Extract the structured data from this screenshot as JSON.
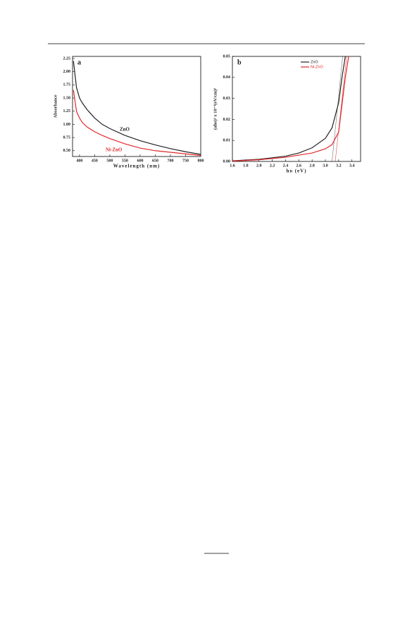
{
  "chart_data": [
    {
      "type": "line",
      "annotation": "a",
      "xlabel": "Wavelength (nm)",
      "ylabel": "Absorbance",
      "xlim": [
        377,
        800
      ],
      "xticks": [
        400,
        450,
        500,
        550,
        600,
        650,
        700,
        750,
        800
      ],
      "ylim": [
        0.39,
        2.29
      ],
      "yticks": [
        {
          "value": 0.5,
          "label": "0.50"
        },
        0.75,
        {
          "value": 1,
          "label": "1.00"
        },
        1.25,
        {
          "value": 1.5,
          "label": "1.50"
        },
        1.75,
        {
          "value": 2,
          "label": "2.00"
        },
        2.25
      ],
      "series": [
        {
          "name": "ZnO",
          "color": "#222222",
          "x": [
            380,
            390,
            400,
            410,
            425,
            450,
            475,
            500,
            550,
            600,
            650,
            700,
            750,
            800
          ],
          "values": [
            2.2,
            1.7,
            1.5,
            1.4,
            1.28,
            1.12,
            1.0,
            0.92,
            0.79,
            0.69,
            0.61,
            0.54,
            0.48,
            0.43
          ]
        },
        {
          "name": "Ni-ZnO",
          "color": "#e0282a",
          "x": [
            380,
            390,
            400,
            410,
            425,
            450,
            475,
            500,
            550,
            600,
            650,
            700,
            750,
            800
          ],
          "values": [
            1.65,
            1.25,
            1.12,
            1.03,
            0.95,
            0.86,
            0.79,
            0.73,
            0.63,
            0.55,
            0.5,
            0.47,
            0.44,
            0.41
          ]
        }
      ],
      "legend": "inline"
    },
    {
      "type": "line",
      "annotation": "b",
      "xlabel": "hυ (eV)",
      "ylabel": "(αhυ)² x 10⁻⁴(eV/cm)²",
      "xlim": [
        1.6,
        3.53
      ],
      "xticks": [
        1.6,
        1.8,
        {
          "value": 2,
          "label": "2.0"
        },
        2.2,
        2.4,
        2.6,
        2.8,
        {
          "value": 3,
          "label": "3.0"
        },
        3.2,
        3.4
      ],
      "ylim": [
        0,
        0.05
      ],
      "yticks": [
        {
          "value": 0,
          "label": "0.00"
        },
        0.01,
        0.02,
        0.03,
        0.04,
        0.05
      ],
      "series": [
        {
          "name": "ZnO",
          "color": "#222222",
          "x": [
            1.6,
            2.0,
            2.4,
            2.6,
            2.8,
            3.0,
            3.1,
            3.2,
            3.25,
            3.3
          ],
          "values": [
            0.0003,
            0.001,
            0.0025,
            0.004,
            0.0065,
            0.011,
            0.016,
            0.028,
            0.04,
            0.05
          ]
        },
        {
          "name": "Ni-ZnO",
          "color": "#e0282a",
          "x": [
            1.6,
            2.0,
            2.4,
            2.8,
            3.0,
            3.1,
            3.2,
            3.3,
            3.35
          ],
          "values": [
            0.0002,
            0.0008,
            0.002,
            0.004,
            0.006,
            0.008,
            0.014,
            0.04,
            0.05
          ]
        }
      ],
      "legend": "upper right"
    }
  ]
}
